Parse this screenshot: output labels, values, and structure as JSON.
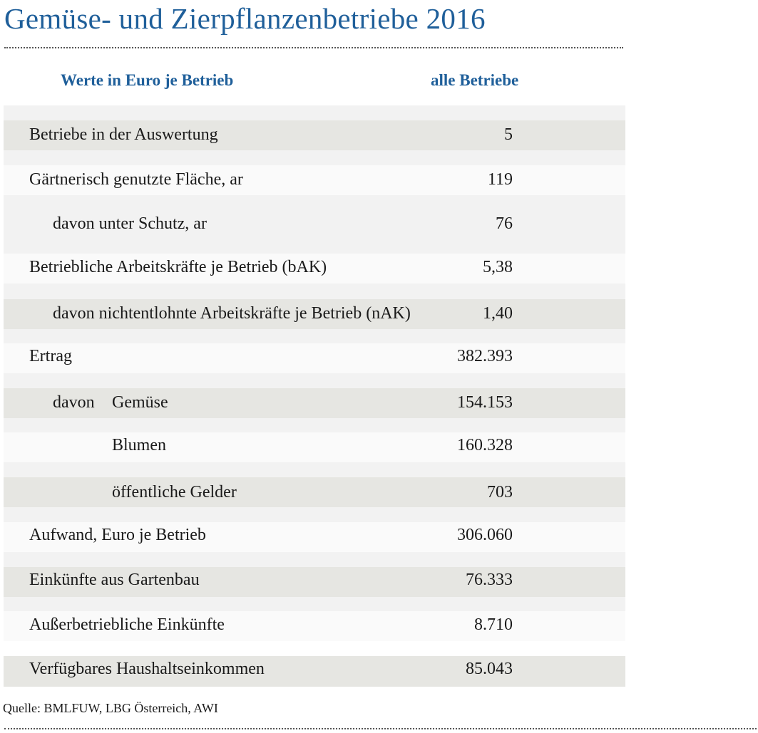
{
  "title": "Gemüse- und Zierpflanzenbetriebe 2016",
  "header": {
    "col1": "Werte in Euro je Betrieb",
    "col2": "alle Betriebe"
  },
  "rows": [
    {
      "label": "Betriebe in der Auswertung",
      "value": "5"
    },
    {
      "label": "Gärtnerisch genutzte Fläche, ar",
      "value": "119"
    },
    {
      "label": "davon unter Schutz, ar",
      "value": "76"
    },
    {
      "label": "Betriebliche Arbeitskräfte je Betrieb (bAK)",
      "value": "5,38"
    },
    {
      "label": "davon nichtentlohnte Arbeitskräfte je Betrieb (nAK)",
      "value": "1,40"
    },
    {
      "label": "Ertrag",
      "value": "382.393"
    },
    {
      "prefix": "davon",
      "label": "Gemüse",
      "value": "154.153"
    },
    {
      "label": "Blumen",
      "value": "160.328"
    },
    {
      "label": "öffentliche Gelder",
      "value": "703"
    },
    {
      "label": "Aufwand, Euro je Betrieb",
      "value": "306.060"
    },
    {
      "label": "Einkünfte aus Gartenbau",
      "value": "76.333"
    },
    {
      "label": "Außerbetriebliche Einkünfte",
      "value": "8.710"
    },
    {
      "label": "Verfügbares Haushaltseinkommen",
      "value": "85.043"
    }
  ],
  "source": "Quelle: BMLFUW, LBG Österreich, AWI"
}
